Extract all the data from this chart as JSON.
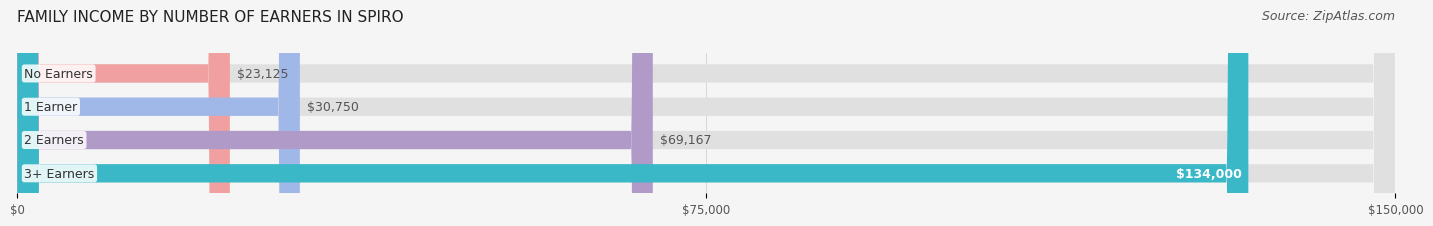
{
  "title": "FAMILY INCOME BY NUMBER OF EARNERS IN SPIRO",
  "source": "Source: ZipAtlas.com",
  "categories": [
    "No Earners",
    "1 Earner",
    "2 Earners",
    "3+ Earners"
  ],
  "values": [
    23125,
    30750,
    69167,
    134000
  ],
  "value_labels": [
    "$23,125",
    "$30,750",
    "$69,167",
    "$134,000"
  ],
  "bar_colors": [
    "#f0a0a0",
    "#a0b8e8",
    "#b09ac8",
    "#3ab8c8"
  ],
  "background_color": "#f5f5f5",
  "xlim": [
    0,
    150000
  ],
  "xtick_values": [
    0,
    75000,
    150000
  ],
  "xtick_labels": [
    "$0",
    "$75,000",
    "$150,000"
  ],
  "title_fontsize": 11,
  "source_fontsize": 9,
  "label_fontsize": 9,
  "value_fontsize": 9,
  "bar_height": 0.55
}
